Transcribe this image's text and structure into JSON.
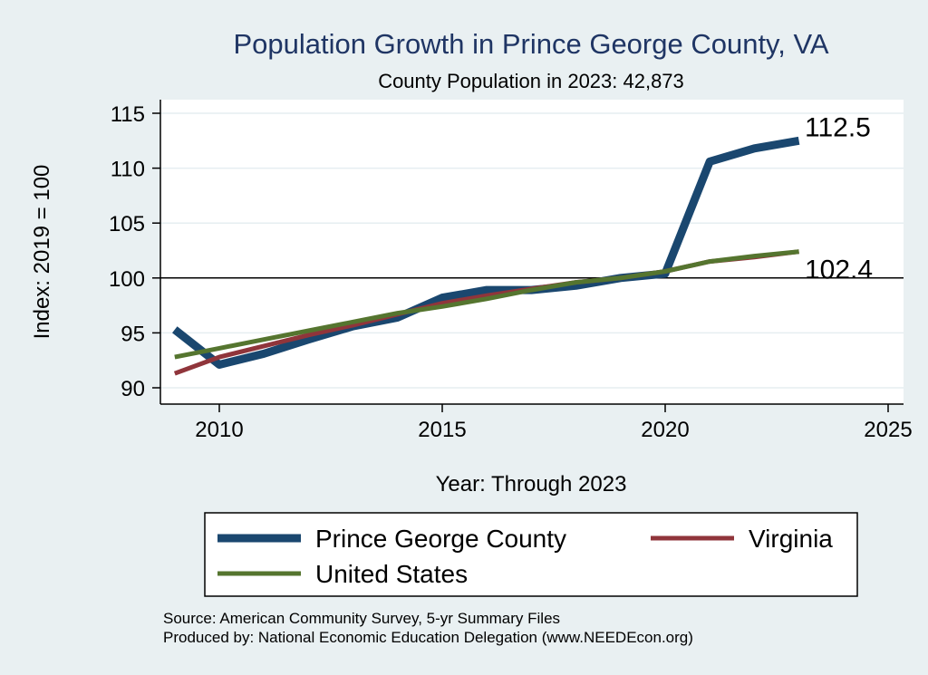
{
  "chart_data": {
    "type": "line",
    "title": "Population Growth in Prince George County, VA",
    "subtitle": "County Population in 2023: 42,873",
    "xlabel": "Year: Through 2023",
    "ylabel": "Index: 2019 = 100",
    "xlim": [
      2009,
      2025
    ],
    "ylim": [
      89,
      116
    ],
    "xticks": [
      2010,
      2015,
      2020,
      2025
    ],
    "yticks": [
      90,
      95,
      100,
      105,
      110,
      115
    ],
    "reference_line": 100,
    "grid": true,
    "legend_position": "bottom",
    "series": [
      {
        "name": "Prince George  County",
        "color": "#1a476f",
        "x": [
          2009,
          2010,
          2011,
          2012,
          2013,
          2014,
          2015,
          2016,
          2017,
          2018,
          2019,
          2020,
          2021,
          2022,
          2023
        ],
        "values": [
          95.3,
          92.1,
          93.1,
          94.4,
          95.6,
          96.4,
          98.2,
          98.9,
          98.9,
          99.3,
          100.0,
          100.4,
          110.6,
          111.8,
          112.5
        ],
        "end_label": "112.5"
      },
      {
        "name": "Virginia",
        "color": "#90353b",
        "x": [
          2009,
          2010,
          2011,
          2012,
          2013,
          2014,
          2015,
          2016,
          2017,
          2018,
          2019,
          2020,
          2021,
          2022,
          2023
        ],
        "values": [
          91.3,
          92.8,
          93.8,
          94.8,
          95.7,
          96.7,
          97.7,
          98.4,
          99.0,
          99.6,
          100.0,
          100.6,
          101.5,
          101.9,
          102.4
        ],
        "end_label": "102.4"
      },
      {
        "name": "United States",
        "color": "#55752f",
        "x": [
          2009,
          2010,
          2011,
          2012,
          2013,
          2014,
          2015,
          2016,
          2017,
          2018,
          2019,
          2020,
          2021,
          2022,
          2023
        ],
        "values": [
          92.8,
          93.6,
          94.4,
          95.2,
          96.0,
          96.8,
          97.4,
          98.1,
          98.9,
          99.6,
          100.0,
          100.6,
          101.5,
          102.0,
          102.4
        ]
      }
    ]
  },
  "source_lines": [
    "Source: American Community Survey, 5-yr Summary Files",
    "Produced by: National Economic Education Delegation (www.NEEDEcon.org)"
  ]
}
